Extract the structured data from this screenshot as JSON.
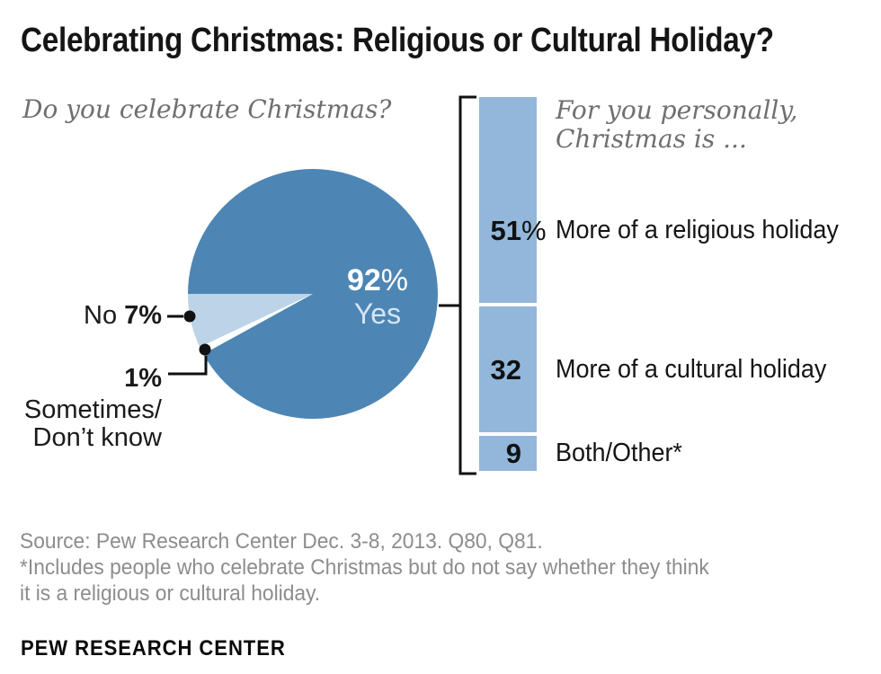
{
  "title": "Celebrating Christmas: Religious or Cultural Holiday?",
  "pie_question": "Do you celebrate Christmas?",
  "bar_question": {
    "line1": "For you personally,",
    "line2": "Christmas is ..."
  },
  "pie_center": {
    "num": "92",
    "suffix": "%",
    "label": "Yes"
  },
  "pie_labels": {
    "no_prefix": "No",
    "no_value": "7%",
    "one_value": "1%",
    "sometimes_line1": "Sometimes/",
    "sometimes_line2": "Don’t know"
  },
  "footer": {
    "source_line": "Source: Pew Research Center Dec. 3-8, 2013. Q80, Q81.",
    "footnote_line1": "*Includes people who celebrate Christmas but do not say whether they think",
    "footnote_line2": "it is a religious or cultural holiday.",
    "brand": "PEW RESEARCH CENTER"
  },
  "colors": {
    "pie_yes": "#4d86b4",
    "pie_no": "#bcd3e8",
    "pie_sometimes": "#ffffff",
    "bar_segment": "#92b7db",
    "center_value_text": "#ffffff",
    "center_sub_text": "#d6e5f2",
    "line_black": "#111111",
    "muted_italic_gray": "#6f6f6f",
    "source_gray": "#8d8d8d"
  },
  "chart_data": [
    {
      "type": "pie",
      "title": "Do you celebrate Christmas?",
      "start_angle_deg": 180,
      "direction": "counterclockwise",
      "slices": [
        {
          "label": "No",
          "value": 7,
          "color": "#bcd3e8"
        },
        {
          "label": "Sometimes/Don’t know",
          "value": 1,
          "color": "#ffffff"
        },
        {
          "label": "Yes",
          "value": 92,
          "color": "#4d86b4"
        }
      ]
    },
    {
      "type": "bar",
      "subtype": "single-stacked-column",
      "title": "For you personally, Christmas is ...",
      "total": 92,
      "color": "#92b7db",
      "segments": [
        {
          "label": "More of a religious holiday",
          "value": 51,
          "num": "51",
          "suffix": "%"
        },
        {
          "label": "More of a cultural holiday",
          "value": 32,
          "num": "32",
          "suffix": ""
        },
        {
          "label": "Both/Other*",
          "value": 9,
          "num": "9",
          "suffix": ""
        }
      ]
    }
  ]
}
